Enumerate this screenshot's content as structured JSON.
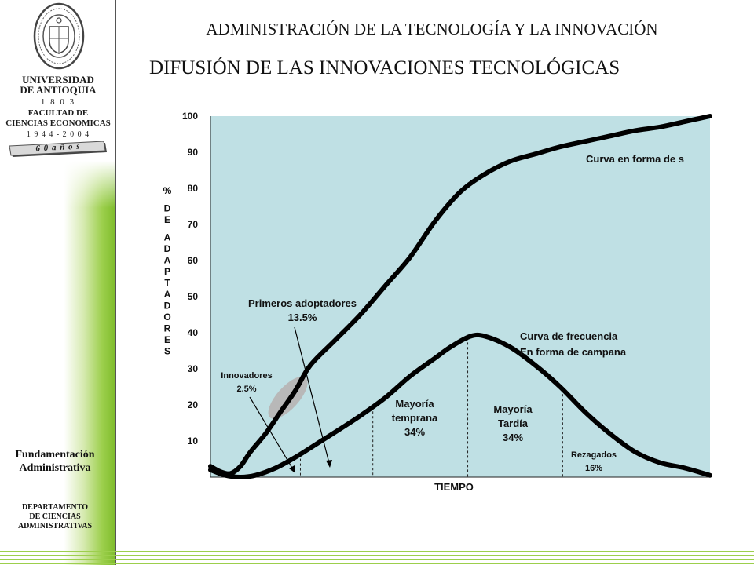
{
  "sidebar": {
    "university_line1": "UNIVERSIDAD",
    "university_line2": "DE ANTIOQUIA",
    "founded_year": "1 8 0 3",
    "faculty_line1": "FACULTAD DE",
    "faculty_line2": "CIENCIAS ECONOMICAS",
    "faculty_years": "1 9 4 4  -  2 0 0 4",
    "anniversary": "6 0   a ñ o s",
    "course_line1": "Fundamentación",
    "course_line2": "Administrativa",
    "dept_line1": "DEPARTAMENTO",
    "dept_line2": "DE CIENCIAS",
    "dept_line3": "ADMINISTRATIVAS"
  },
  "header": {
    "course_title": "ADMINISTRACIÓN DE LA TECNOLOGÍA Y LA INNOVACIÓN",
    "slide_title": "DIFUSIÓN DE LAS INNOVACIONES TECNOLÓGICAS"
  },
  "colors": {
    "plot_background": "#bfe0e4",
    "curve": "#000000",
    "accent_green": "#8dc63f",
    "innovators_blob": "#b8b8b8"
  },
  "chart_data": {
    "type": "line",
    "title": "",
    "xlabel": "TIEMPO",
    "ylabel": "% DE ADAPTADORES",
    "ylim": [
      0,
      100
    ],
    "yticks": [
      10,
      20,
      30,
      40,
      50,
      60,
      70,
      80,
      90,
      100
    ],
    "grid": false,
    "x_axis_values_shown": false,
    "series": [
      {
        "label": "Curva en forma de s",
        "kind": "cumulative adoption (S-curve)",
        "x": [
          0,
          2,
          4,
          6,
          8,
          11,
          14,
          17,
          20,
          25,
          30,
          35,
          40,
          45,
          50,
          55,
          60,
          65,
          70,
          75,
          80,
          85,
          90,
          95,
          100
        ],
        "y": [
          3,
          1.5,
          1,
          3,
          7,
          12,
          18,
          24,
          31,
          38,
          45,
          53,
          61,
          71,
          79,
          84,
          87.5,
          89.5,
          91.5,
          93,
          94.5,
          96,
          97,
          98.5,
          100
        ]
      },
      {
        "label": "Curva de frecuencia En forma de campana",
        "kind": "frequency (bell curve)",
        "x": [
          0,
          3,
          6,
          9,
          13,
          17,
          21,
          25,
          30,
          35,
          40,
          45,
          48,
          52,
          55,
          60,
          65,
          70,
          75,
          80,
          85,
          90,
          95,
          100
        ],
        "y": [
          2,
          0.5,
          0,
          0.5,
          2.5,
          5.5,
          9,
          12.5,
          17,
          22,
          28,
          33,
          36,
          39,
          39,
          36,
          31,
          25,
          18,
          12,
          7,
          4,
          2.5,
          0.5
        ]
      }
    ],
    "segments": [
      {
        "name": "Innovadores",
        "share": "2.5%",
        "x_from": 0,
        "x_to": 18
      },
      {
        "name": "Primeros adoptadores",
        "share": "13.5%",
        "x_from": 18,
        "x_to": 32.5
      },
      {
        "name": "Mayoría temprana",
        "share": "34%",
        "x_from": 32.5,
        "x_to": 51.5
      },
      {
        "name": "Mayoría Tardía",
        "share": "34%",
        "x_from": 51.5,
        "x_to": 70.5
      },
      {
        "name": "Rezagados",
        "share": "16%",
        "x_from": 70.5,
        "x_to": 100
      }
    ],
    "annotations": {
      "s_curve": "Curva en forma de s",
      "bell_line1": "Curva de frecuencia",
      "bell_line2": "En forma de campana",
      "early_adopters_line1": "Primeros adoptadores",
      "early_adopters_line2": "13.5%",
      "innovators_line1": "Innovadores",
      "innovators_line2": "2.5%",
      "early_majority_line1": "Mayoría",
      "early_majority_line2": "temprana",
      "early_majority_line3": "34%",
      "late_majority_line1": "Mayoría",
      "late_majority_line2": "Tardía",
      "late_majority_line3": "34%",
      "laggards_line1": "Rezagados",
      "laggards_line2": "16%"
    }
  }
}
